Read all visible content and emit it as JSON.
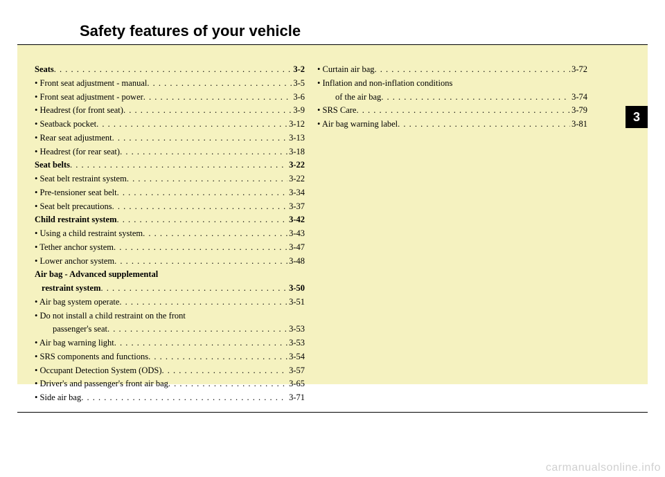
{
  "title": "Safety features of your vehicle",
  "chapter_number": "3",
  "watermark": "carmanualsonline.info",
  "colors": {
    "content_bg": "#f5f2c0",
    "tab_bg": "#000000",
    "tab_fg": "#ffffff",
    "text": "#000000",
    "watermark": "#d0d0d0"
  },
  "left_col": [
    {
      "type": "section",
      "label": "Seats",
      "page": "3-2"
    },
    {
      "type": "sub",
      "label": "Front seat adjustment - manual",
      "page": "3-5"
    },
    {
      "type": "sub",
      "label": "Front seat adjustment - power",
      "page": "3-6"
    },
    {
      "type": "sub",
      "label": "Headrest (for front seat)",
      "page": "3-9"
    },
    {
      "type": "sub",
      "label": "Seatback pocket",
      "page": "3-12"
    },
    {
      "type": "sub",
      "label": "Rear seat adjustment",
      "page": "3-13"
    },
    {
      "type": "sub",
      "label": "Headrest (for rear seat)",
      "page": "3-18"
    },
    {
      "type": "section",
      "label": "Seat belts",
      "page": "3-22"
    },
    {
      "type": "sub",
      "label": "Seat belt restraint system",
      "page": "3-22"
    },
    {
      "type": "sub",
      "label": "Pre-tensioner seat belt",
      "page": "3-34"
    },
    {
      "type": "sub",
      "label": "Seat belt precautions",
      "page": "3-37"
    },
    {
      "type": "section",
      "label": "Child restraint system",
      "page": "3-42"
    },
    {
      "type": "sub",
      "label": "Using a child restraint system",
      "page": "3-43"
    },
    {
      "type": "sub",
      "label": "Tether anchor system",
      "page": "3-47"
    },
    {
      "type": "sub",
      "label": "Lower anchor system",
      "page": "3-48"
    },
    {
      "type": "section-noline",
      "label": "Air bag - Advanced supplemental"
    },
    {
      "type": "section-cont",
      "label": "restraint system",
      "page": "3-50"
    },
    {
      "type": "sub",
      "label": "Air bag system operate",
      "page": "3-51"
    },
    {
      "type": "sub-noline",
      "label": "Do not install a child restraint on the front"
    },
    {
      "type": "indent",
      "label": "passenger's seat",
      "page": "3-53"
    },
    {
      "type": "sub",
      "label": "Air bag warning light",
      "page": "3-53"
    },
    {
      "type": "sub",
      "label": "SRS components and functions",
      "page": "3-54"
    },
    {
      "type": "sub",
      "label": "Occupant Detection System (ODS)",
      "page": "3-57"
    },
    {
      "type": "sub",
      "label": "Driver's and passenger's front air bag",
      "page": "3-65"
    },
    {
      "type": "sub",
      "label": "Side air bag",
      "page": "3-71"
    }
  ],
  "right_col": [
    {
      "type": "sub",
      "label": "Curtain air bag",
      "page": "3-72"
    },
    {
      "type": "sub-noline",
      "label": "Inflation and non-inflation conditions"
    },
    {
      "type": "indent",
      "label": "of the air bag",
      "page": "3-74"
    },
    {
      "type": "sub",
      "label": "SRS Care",
      "page": "3-79"
    },
    {
      "type": "sub",
      "label": "Air bag warning label",
      "page": "3-81"
    }
  ]
}
